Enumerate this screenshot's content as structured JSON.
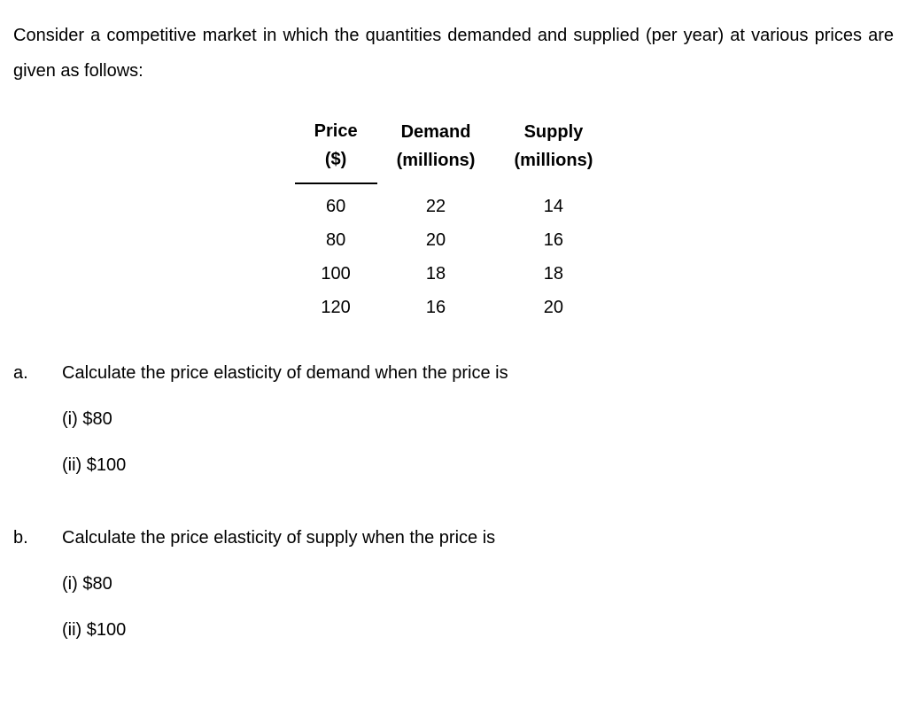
{
  "intro": "Consider a competitive market in which the quantities demanded and supplied (per year) at various prices are given as follows:",
  "table": {
    "headers": {
      "price_line1": "Price",
      "price_line2": "($)",
      "demand_line1": "Demand",
      "demand_line2": "(millions)",
      "supply_line1": "Supply",
      "supply_line2": "(millions)"
    },
    "rows": [
      {
        "price": "60",
        "demand": "22",
        "supply": "14"
      },
      {
        "price": "80",
        "demand": "20",
        "supply": "16"
      },
      {
        "price": "100",
        "demand": "18",
        "supply": "18"
      },
      {
        "price": "120",
        "demand": "16",
        "supply": "20"
      }
    ]
  },
  "questions": {
    "a": {
      "label": "a.",
      "prompt": "Calculate the price elasticity of demand when the price is",
      "i": "(i) $80",
      "ii": "(ii) $100"
    },
    "b": {
      "label": "b.",
      "prompt": "Calculate the price elasticity of supply when the price is",
      "i": "(i) $80",
      "ii": "(ii) $100"
    }
  }
}
